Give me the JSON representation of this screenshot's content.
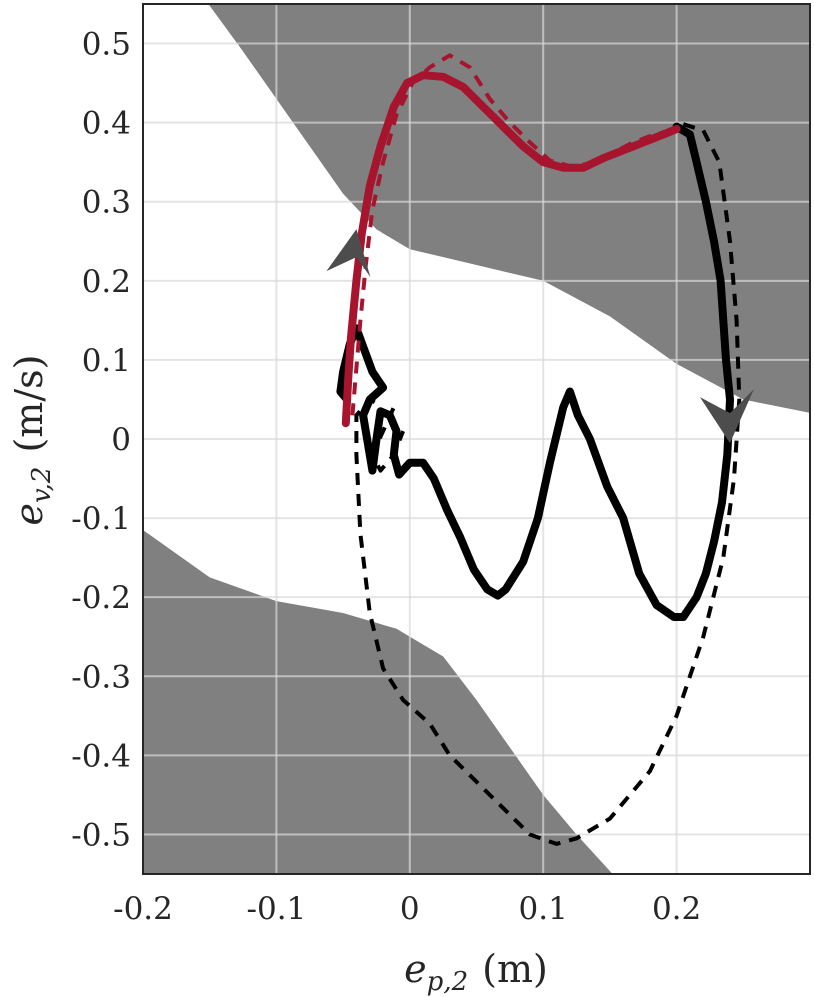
{
  "chart_data": {
    "type": "line",
    "xlabel": {
      "var": "e",
      "sub": "p,2",
      "unit": "(m)"
    },
    "ylabel": {
      "var": "e",
      "sub": "v,2",
      "unit": "(m/s)"
    },
    "xlim": [
      -0.2,
      0.3
    ],
    "ylim": [
      -0.55,
      0.55
    ],
    "x_ticks": [
      -0.2,
      -0.1,
      0,
      0.1,
      0.2
    ],
    "x_tick_labels": [
      "-0.2",
      "-0.1",
      "0",
      "0.1",
      "0.2"
    ],
    "y_ticks": [
      -0.5,
      -0.4,
      -0.3,
      -0.2,
      -0.1,
      0,
      0.1,
      0.2,
      0.3,
      0.4,
      0.5
    ],
    "y_tick_labels": [
      "-0.5",
      "-0.4",
      "-0.3",
      "-0.2",
      "-0.1",
      "0",
      "0.1",
      "0.2",
      "0.3",
      "0.4",
      "0.5"
    ],
    "grid": true,
    "colors": {
      "region": "#808080",
      "measured": "#000000",
      "highlight": "#a6142e",
      "arrow": "#4d4d4d",
      "grid": "#d9d9d9"
    },
    "regions": [
      {
        "kind": "upper",
        "boundary": [
          [
            -0.151,
            0.55
          ],
          [
            -0.125,
            0.49
          ],
          [
            -0.1,
            0.43
          ],
          [
            -0.075,
            0.37
          ],
          [
            -0.05,
            0.31
          ],
          [
            -0.025,
            0.265
          ],
          [
            0.0,
            0.24
          ],
          [
            0.05,
            0.22
          ],
          [
            0.1,
            0.2
          ],
          [
            0.15,
            0.155
          ],
          [
            0.2,
            0.095
          ],
          [
            0.25,
            0.05
          ],
          [
            0.3,
            0.033
          ]
        ]
      },
      {
        "kind": "lower",
        "boundary": [
          [
            -0.2,
            -0.115
          ],
          [
            -0.15,
            -0.175
          ],
          [
            -0.1,
            -0.205
          ],
          [
            -0.05,
            -0.22
          ],
          [
            -0.01,
            -0.24
          ],
          [
            0.025,
            -0.275
          ],
          [
            0.05,
            -0.33
          ],
          [
            0.075,
            -0.39
          ],
          [
            0.1,
            -0.45
          ],
          [
            0.125,
            -0.5
          ],
          [
            0.152,
            -0.55
          ]
        ]
      }
    ],
    "series": [
      {
        "style": "solid",
        "color_key": "measured",
        "points": [
          [
            0.2,
            0.395
          ],
          [
            0.21,
            0.385
          ],
          [
            0.215,
            0.35
          ],
          [
            0.222,
            0.3
          ],
          [
            0.228,
            0.25
          ],
          [
            0.233,
            0.2
          ],
          [
            0.235,
            0.15
          ],
          [
            0.237,
            0.1
          ],
          [
            0.24,
            0.05
          ],
          [
            0.238,
            -0.02
          ],
          [
            0.234,
            -0.08
          ],
          [
            0.228,
            -0.13
          ],
          [
            0.222,
            -0.17
          ],
          [
            0.215,
            -0.2
          ],
          [
            0.205,
            -0.225
          ],
          [
            0.198,
            -0.225
          ],
          [
            0.185,
            -0.21
          ],
          [
            0.172,
            -0.17
          ],
          [
            0.16,
            -0.1
          ],
          [
            0.148,
            -0.06
          ],
          [
            0.135,
            0.0
          ],
          [
            0.126,
            0.03
          ],
          [
            0.12,
            0.06
          ],
          [
            0.115,
            0.04
          ],
          [
            0.105,
            -0.03
          ],
          [
            0.096,
            -0.1
          ],
          [
            0.085,
            -0.155
          ],
          [
            0.072,
            -0.19
          ],
          [
            0.066,
            -0.198
          ],
          [
            0.058,
            -0.19
          ],
          [
            0.048,
            -0.165
          ],
          [
            0.038,
            -0.125
          ],
          [
            0.028,
            -0.09
          ],
          [
            0.018,
            -0.05
          ],
          [
            0.01,
            -0.03
          ],
          [
            0.0,
            -0.03
          ],
          [
            -0.008,
            -0.045
          ],
          [
            -0.012,
            -0.02
          ],
          [
            -0.01,
            0.01
          ],
          [
            -0.015,
            0.03
          ],
          [
            -0.022,
            0.035
          ],
          [
            -0.025,
            0.0
          ],
          [
            -0.028,
            -0.04
          ],
          [
            -0.032,
            0.0
          ],
          [
            -0.035,
            0.03
          ],
          [
            -0.03,
            0.05
          ],
          [
            -0.02,
            0.065
          ],
          [
            -0.028,
            0.085
          ],
          [
            -0.04,
            0.14
          ],
          [
            -0.045,
            0.12
          ],
          [
            -0.05,
            0.085
          ],
          [
            -0.052,
            0.06
          ],
          [
            -0.047,
            0.05
          ]
        ]
      },
      {
        "style": "dashed",
        "color_key": "measured",
        "points": [
          [
            0.205,
            0.398
          ],
          [
            0.22,
            0.39
          ],
          [
            0.232,
            0.35
          ],
          [
            0.24,
            0.25
          ],
          [
            0.245,
            0.15
          ],
          [
            0.247,
            0.05
          ],
          [
            0.243,
            -0.05
          ],
          [
            0.235,
            -0.15
          ],
          [
            0.22,
            -0.25
          ],
          [
            0.2,
            -0.35
          ],
          [
            0.18,
            -0.42
          ],
          [
            0.15,
            -0.48
          ],
          [
            0.125,
            -0.505
          ],
          [
            0.11,
            -0.512
          ],
          [
            0.09,
            -0.5
          ],
          [
            0.06,
            -0.45
          ],
          [
            0.03,
            -0.4
          ],
          [
            0.015,
            -0.36
          ],
          [
            -0.005,
            -0.33
          ],
          [
            -0.02,
            -0.29
          ],
          [
            -0.03,
            -0.22
          ],
          [
            -0.037,
            -0.12
          ],
          [
            -0.04,
            -0.02
          ],
          [
            -0.04,
            0.03
          ],
          [
            -0.03,
            0.05
          ],
          [
            -0.025,
            0.045
          ],
          [
            -0.02,
            0.03
          ],
          [
            -0.012,
            0.04
          ],
          [
            -0.02,
            0.01
          ],
          [
            -0.028,
            -0.02
          ],
          [
            -0.022,
            -0.04
          ],
          [
            -0.012,
            -0.02
          ],
          [
            -0.005,
            0.01
          ]
        ]
      },
      {
        "style": "solid",
        "color_key": "highlight",
        "points": [
          [
            -0.048,
            0.02
          ],
          [
            -0.046,
            0.08
          ],
          [
            -0.044,
            0.13
          ],
          [
            -0.04,
            0.2
          ],
          [
            -0.036,
            0.26
          ],
          [
            -0.03,
            0.32
          ],
          [
            -0.022,
            0.37
          ],
          [
            -0.012,
            0.42
          ],
          [
            -0.002,
            0.45
          ],
          [
            0.01,
            0.46
          ],
          [
            0.025,
            0.458
          ],
          [
            0.04,
            0.445
          ],
          [
            0.055,
            0.42
          ],
          [
            0.07,
            0.395
          ],
          [
            0.085,
            0.37
          ],
          [
            0.1,
            0.35
          ],
          [
            0.115,
            0.343
          ],
          [
            0.13,
            0.343
          ],
          [
            0.145,
            0.355
          ],
          [
            0.16,
            0.365
          ],
          [
            0.175,
            0.375
          ],
          [
            0.19,
            0.385
          ],
          [
            0.2,
            0.392
          ]
        ]
      },
      {
        "style": "dashed",
        "color_key": "highlight",
        "points": [
          [
            -0.043,
            0.03
          ],
          [
            -0.04,
            0.09
          ],
          [
            -0.037,
            0.15
          ],
          [
            -0.033,
            0.22
          ],
          [
            -0.028,
            0.29
          ],
          [
            -0.02,
            0.35
          ],
          [
            -0.01,
            0.41
          ],
          [
            0.002,
            0.45
          ],
          [
            0.015,
            0.47
          ],
          [
            0.03,
            0.485
          ],
          [
            0.045,
            0.47
          ],
          [
            0.06,
            0.43
          ],
          [
            0.075,
            0.4
          ],
          [
            0.09,
            0.375
          ],
          [
            0.105,
            0.352
          ],
          [
            0.12,
            0.345
          ],
          [
            0.135,
            0.348
          ],
          [
            0.15,
            0.36
          ],
          [
            0.165,
            0.373
          ],
          [
            0.18,
            0.383
          ],
          [
            0.195,
            0.39
          ]
        ]
      }
    ],
    "arrows": [
      {
        "at": [
          -0.04,
          0.24
        ],
        "direction": "up"
      },
      {
        "at": [
          0.24,
          0.02
        ],
        "direction": "down"
      }
    ]
  }
}
